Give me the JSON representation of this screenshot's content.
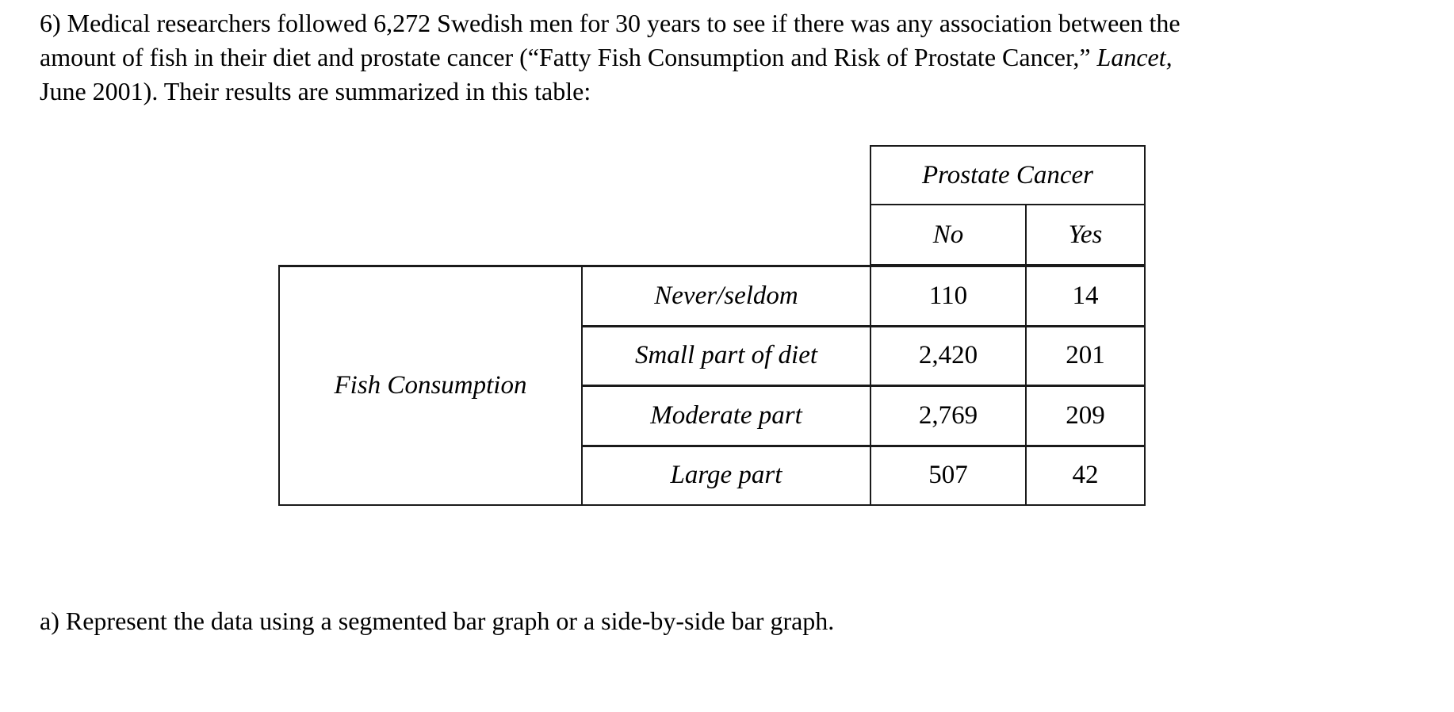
{
  "page": {
    "problem_text": {
      "line1": "6) Medical researchers followed 6,272 Swedish men for 30 years to see if there was any association between the",
      "line2_pre": "amount of fish in their diet and prostate cancer (“Fatty Fish Consumption and Risk of Prostate Cancer,” ",
      "line2_italic": "Lancet,",
      "line3": "June 2001). Their results are summarized in this table:",
      "question_a": "a) Represent the data using a segmented bar graph or a side-by-side bar graph."
    }
  },
  "table": {
    "column_group_header": "Prostate Cancer",
    "column_headers": [
      "No",
      "Yes"
    ],
    "row_group_header": "Fish Consumption",
    "rows": [
      {
        "label": "Never/seldom",
        "no": "110",
        "yes": "14"
      },
      {
        "label": "Small part of diet",
        "no": "2,420",
        "yes": "201"
      },
      {
        "label": "Moderate part",
        "no": "2,769",
        "yes": "209"
      },
      {
        "label": "Large part",
        "no": "507",
        "yes": "42"
      }
    ]
  },
  "colors": {
    "text": "#000000",
    "border": "#1a1a1a",
    "background": "#ffffff"
  }
}
